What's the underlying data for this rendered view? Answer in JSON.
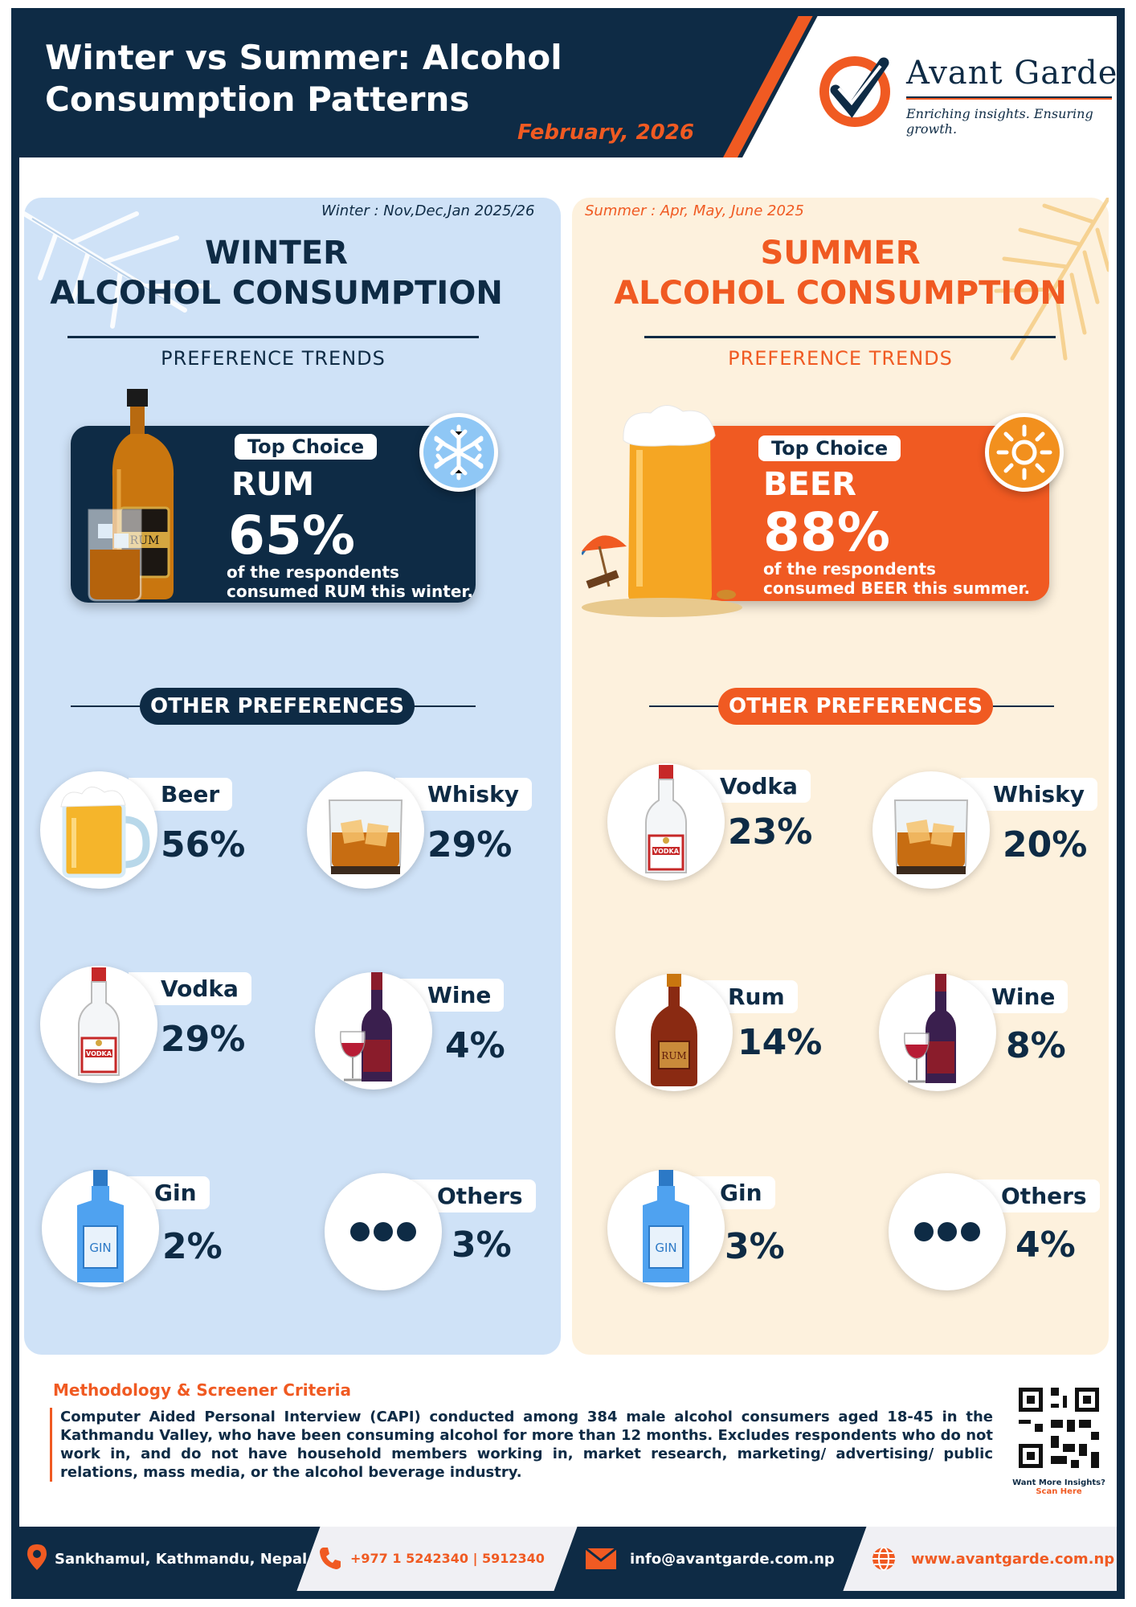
{
  "header": {
    "title": "Winter vs Summer: Alcohol Consumption Patterns",
    "date": "February, 2026",
    "brand": "Avant Garde",
    "tagline": "Enriching insights. Ensuring growth."
  },
  "winter": {
    "period": "Winter : Nov,Dec,Jan 2025/26",
    "title_line1": "WINTER",
    "title_line2": "ALCOHOL CONSUMPTION",
    "trends": "PREFERENCE TRENDS",
    "top_label": "Top Choice",
    "top_drink": "RUM",
    "top_pct": "65%",
    "top_note_1": "of the respondents",
    "top_note_2": "consumed RUM this winter.",
    "other_label": "OTHER PREFERENCES",
    "items": [
      {
        "name": "Beer",
        "pct": "56%",
        "icon": "beer-mug-icon"
      },
      {
        "name": "Whisky",
        "pct": "29%",
        "icon": "whisky-glass-icon"
      },
      {
        "name": "Vodka",
        "pct": "29%",
        "icon": "vodka-bottle-icon"
      },
      {
        "name": "Wine",
        "pct": "4%",
        "icon": "wine-icon"
      },
      {
        "name": "Gin",
        "pct": "2%",
        "icon": "gin-bottle-icon"
      },
      {
        "name": "Others",
        "pct": "3%",
        "icon": "more-dots-icon"
      }
    ]
  },
  "summer": {
    "period": "Summer : Apr, May, June 2025",
    "title_line1": "SUMMER",
    "title_line2": "ALCOHOL CONSUMPTION",
    "trends": "PREFERENCE TRENDS",
    "top_label": "Top Choice",
    "top_drink": "BEER",
    "top_pct": "88%",
    "top_note_1": "of the respondents",
    "top_note_2": "consumed BEER this summer.",
    "other_label": "OTHER PREFERENCES",
    "items": [
      {
        "name": "Vodka",
        "pct": "23%",
        "icon": "vodka-bottle-icon"
      },
      {
        "name": "Whisky",
        "pct": "20%",
        "icon": "whisky-glass-icon"
      },
      {
        "name": "Rum",
        "pct": "14%",
        "icon": "rum-bottle-icon"
      },
      {
        "name": "Wine",
        "pct": "8%",
        "icon": "wine-icon"
      },
      {
        "name": "Gin",
        "pct": "3%",
        "icon": "gin-bottle-icon"
      },
      {
        "name": "Others",
        "pct": "4%",
        "icon": "more-dots-icon"
      }
    ]
  },
  "labels": {
    "vodka": "VODKA",
    "rum": "RUM",
    "gin": "GIN"
  },
  "methodology": {
    "title": "Methodology & Screener Criteria",
    "text": "Computer Aided Personal Interview (CAPI) conducted among 384 male alcohol consumers aged 18-45 in the Kathmandu Valley, who have been consuming alcohol for more than 12 months. Excludes respondents who do not work in, and do not have household members working in, market research, marketing/ advertising/ public relations, mass media, or the alcohol beverage industry."
  },
  "qr": {
    "line1": "Want More Insights?",
    "line2": "Scan Here"
  },
  "footer": {
    "address": "Sankhamul, Kathmandu, Nepal",
    "phone": "+977 1 5242340 | 5912340",
    "email": "info@avantgarde.com.np",
    "web": "www.avantgarde.com.np"
  },
  "colors": {
    "navy": "#0e2b45",
    "orange": "#f05a22",
    "winter_bg": "#cfe2f7",
    "summer_bg": "#fdf1dd"
  }
}
